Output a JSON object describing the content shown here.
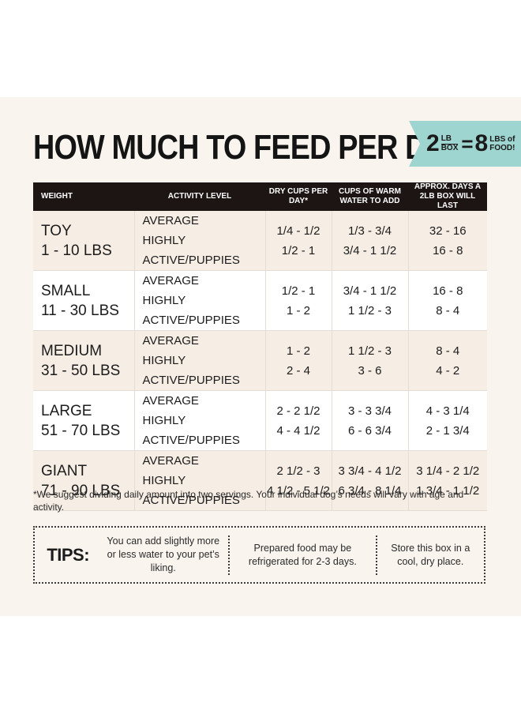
{
  "title": "HOW MUCH TO FEED PER DAY",
  "badge": {
    "box_count": "2",
    "box_unit_top": "LB",
    "box_unit_bottom": "BOX",
    "equals": "=",
    "food_count": "8",
    "food_unit_top": "LBS of",
    "food_unit_bottom": "FOOD!",
    "color": "#9fd5d0"
  },
  "table": {
    "headers": [
      "WEIGHT",
      "ACTIVITY LEVEL",
      "DRY CUPS PER DAY*",
      "CUPS OF WARM WATER TO ADD",
      "APPROX. DAYS A 2LB BOX WILL LAST"
    ],
    "rows": [
      {
        "name": "TOY",
        "range": "1 - 10 LBS",
        "levels": [
          "AVERAGE",
          "HIGHLY ACTIVE/PUPPIES"
        ],
        "dry": [
          "1/4 - 1/2",
          "1/2 - 1"
        ],
        "water": [
          "1/3 - 3/4",
          "3/4 - 1 1/2"
        ],
        "days": [
          "32 - 16",
          "16 - 8"
        ]
      },
      {
        "name": "SMALL",
        "range": "11 - 30 LBS",
        "levels": [
          "AVERAGE",
          "HIGHLY ACTIVE/PUPPIES"
        ],
        "dry": [
          "1/2 - 1",
          "1 - 2"
        ],
        "water": [
          "3/4 - 1 1/2",
          "1 1/2 - 3"
        ],
        "days": [
          "16 - 8",
          "8 - 4"
        ]
      },
      {
        "name": "MEDIUM",
        "range": "31 - 50 LBS",
        "levels": [
          "AVERAGE",
          "HIGHLY ACTIVE/PUPPIES"
        ],
        "dry": [
          "1 - 2",
          "2 - 4"
        ],
        "water": [
          "1 1/2 - 3",
          "3 - 6"
        ],
        "days": [
          "8 - 4",
          "4 - 2"
        ]
      },
      {
        "name": "LARGE",
        "range": "51 - 70 LBS",
        "levels": [
          "AVERAGE",
          "HIGHLY ACTIVE/PUPPIES"
        ],
        "dry": [
          "2 - 2 1/2",
          "4 - 4 1/2"
        ],
        "water": [
          "3 - 3 3/4",
          "6 - 6 3/4"
        ],
        "days": [
          "4 - 3 1/4",
          "2 - 1 3/4"
        ]
      },
      {
        "name": "GIANT",
        "range": "71 - 90 LBS",
        "levels": [
          "AVERAGE",
          "HIGHLY ACTIVE/PUPPIES"
        ],
        "dry": [
          "2 1/2 - 3",
          "4 1/2 - 5 1/2"
        ],
        "water": [
          "3 3/4 - 4 1/2",
          "6 3/4 - 8 1/4"
        ],
        "days": [
          "3 1/4 - 2 1/2",
          "1 3/4 - 1 1/2"
        ]
      }
    ]
  },
  "footnote": "*We suggest dividing daily amount into two servings. Your individual dog’s needs will vary with age and activity.",
  "tips": {
    "label": "TIPS:",
    "items": [
      "You can add slightly more or less water to your pet’s liking.",
      "Prepared food may be refrigerated for 2-3 days.",
      "Store this box in a cool, dry place."
    ]
  }
}
